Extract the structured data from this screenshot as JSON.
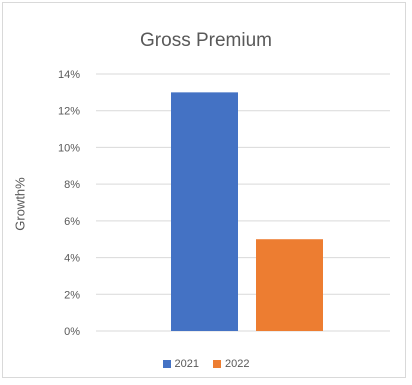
{
  "chart_data": {
    "type": "bar",
    "title": "Gross Premium",
    "ylabel": "Growth%",
    "xlabel": "",
    "categories": [
      ""
    ],
    "series": [
      {
        "name": "2021",
        "values": [
          13
        ],
        "color": "#4472C4"
      },
      {
        "name": "2022",
        "values": [
          5
        ],
        "color": "#ED7D31"
      }
    ],
    "ylim": [
      0,
      14
    ],
    "yticks": [
      "0%",
      "2%",
      "4%",
      "6%",
      "8%",
      "10%",
      "12%",
      "14%"
    ],
    "grid": true,
    "legend": "bottom"
  }
}
